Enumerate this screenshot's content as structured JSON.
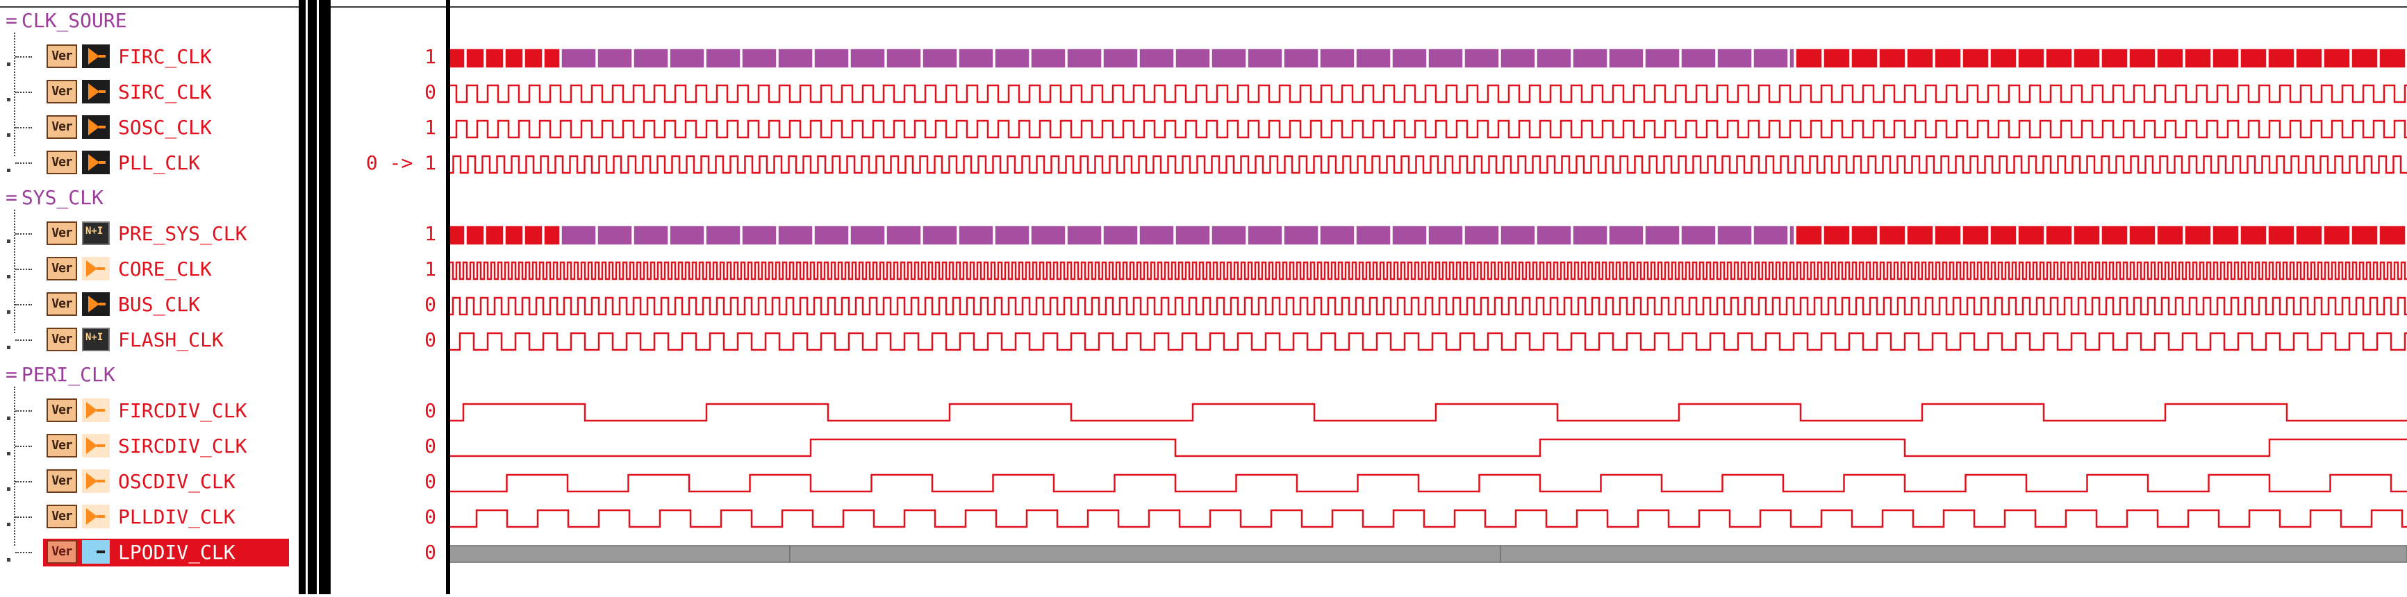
{
  "groups": [
    {
      "name": "CLK_SOURE",
      "signals": [
        {
          "name": "FIRC_CLK",
          "value": "1",
          "icon": "clock-icon",
          "wave": {
            "kind": "bus",
            "segments": [
              {
                "start": 0,
                "end": 165,
                "color": "#e0101c",
                "cell": 28
              },
              {
                "start": 165,
                "end": 1942,
                "color": "#a64fa0",
                "cell": 52
              },
              {
                "start": 1942,
                "end": 2823,
                "color": "#e0101c",
                "cell": 40
              }
            ]
          }
        },
        {
          "name": "SIRC_CLK",
          "value": "0",
          "icon": "clock-icon",
          "wave": {
            "kind": "clock",
            "period": 30,
            "first": "high"
          }
        },
        {
          "name": "SOSC_CLK",
          "value": "1",
          "icon": "clock-icon",
          "wave": {
            "kind": "clock",
            "period": 30,
            "first": "low"
          }
        },
        {
          "name": "PLL_CLK",
          "value": "0 -> 1",
          "icon": "clock-icon",
          "wave": {
            "kind": "clock",
            "period": 21,
            "first": "low"
          }
        }
      ]
    },
    {
      "name": "SYS_CLK",
      "signals": [
        {
          "name": "PRE_SYS_CLK",
          "value": "1",
          "icon": "hier-icon",
          "wave": {
            "kind": "bus",
            "segments": [
              {
                "start": 0,
                "end": 165,
                "color": "#e0101c",
                "cell": 28
              },
              {
                "start": 165,
                "end": 1942,
                "color": "#a64fa0",
                "cell": 52
              },
              {
                "start": 1942,
                "end": 2823,
                "color": "#e0101c",
                "cell": 40
              }
            ]
          }
        },
        {
          "name": "CORE_CLK",
          "value": "1",
          "icon": "clock-icon-outline",
          "wave": {
            "kind": "clock",
            "period": 10,
            "first": "low"
          }
        },
        {
          "name": "BUS_CLK",
          "value": "0",
          "icon": "clock-icon",
          "wave": {
            "kind": "clock",
            "period": 20,
            "first": "low"
          }
        },
        {
          "name": "FLASH_CLK",
          "value": "0",
          "icon": "hier-icon",
          "wave": {
            "kind": "clock",
            "period": 40,
            "first": "low"
          }
        }
      ]
    },
    {
      "name": "PERI_CLK",
      "signals": [
        {
          "name": "FIRCDIV_CLK",
          "value": "0",
          "icon": "clock-icon-outline",
          "wave": {
            "kind": "clock",
            "period": 350,
            "first": "low",
            "offset": 150
          }
        },
        {
          "name": "SIRCDIV_CLK",
          "value": "0",
          "icon": "clock-icon-outline",
          "wave": {
            "kind": "clock",
            "period": 1050,
            "first": "low",
            "offset": 0
          }
        },
        {
          "name": "OSCDIV_CLK",
          "value": "0",
          "icon": "clock-icon-outline",
          "wave": {
            "kind": "clock",
            "period": 175,
            "first": "low",
            "offset": 0
          }
        },
        {
          "name": "PLLDIV_CLK",
          "value": "0",
          "icon": "clock-icon-outline",
          "wave": {
            "kind": "clock",
            "period": 88,
            "first": "low",
            "offset": 0
          }
        },
        {
          "name": "LPODIV_CLK",
          "value": "0",
          "icon": "select-icon",
          "selected": true,
          "wave": {
            "kind": "bus-gray",
            "segments": [
              {
                "start": 0,
                "end": 495
              },
              {
                "start": 495,
                "end": 1518
              },
              {
                "start": 1518,
                "end": 2823
              }
            ]
          }
        }
      ]
    }
  ],
  "var_badge": "Ver",
  "hier_badge": "N+I",
  "colors": {
    "wave": "#e0101c",
    "wave_alt": "#a64fa0",
    "group": "#9b3d9b",
    "bus_gray": "#9a9a9a",
    "selected": "#e0101c"
  }
}
